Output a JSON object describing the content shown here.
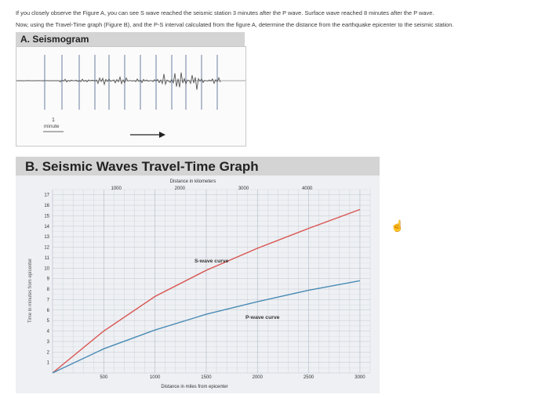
{
  "intro": {
    "line1": "If you closely observe the Figure A, you can see S wave reached the seismic station 3 minutes after the P wave. Surface wave reached 8 minutes after the P wave.",
    "line2": "Now, using the Travel-Time graph (Figure B), and the P-S interval calculated from the figure A, determine the distance from the earthquake epicenter to the seismic station."
  },
  "seismogram": {
    "title": "A. Seismogram",
    "scale_number": "1",
    "scale_label": "minute"
  },
  "graph": {
    "title": "B. Seismic Waves Travel-Time Graph",
    "top_axis_label": "Distance in kilometers",
    "bottom_axis_label": "Distance in miles from epicenter",
    "y_axis_label": "Time in minutes from epicenter",
    "top_ticks": [
      "1000",
      "2000",
      "3000",
      "4000"
    ],
    "bottom_ticks": [
      "500",
      "1000",
      "1500",
      "2000",
      "2500",
      "3000"
    ],
    "y_ticks": [
      "1",
      "2",
      "3",
      "4",
      "5",
      "6",
      "7",
      "8",
      "9",
      "10",
      "11",
      "12",
      "13",
      "14",
      "15",
      "16",
      "17"
    ],
    "s_label": "S-wave curve",
    "p_label": "P-wave curve",
    "colors": {
      "s_curve": "#d9534f",
      "p_curve": "#4a8bb5",
      "grid": "#9aa6b5"
    }
  },
  "chart_data": {
    "type": "line",
    "title": "B. Seismic Waves Travel-Time Graph",
    "xlabel": "Distance in miles from epicenter",
    "ylabel": "Time in minutes from epicenter",
    "xlim": [
      0,
      3100
    ],
    "ylim": [
      0,
      17.5
    ],
    "grid": true,
    "series": [
      {
        "name": "S-wave curve",
        "x": [
          0,
          500,
          1000,
          1500,
          2000,
          2500,
          3000
        ],
        "y": [
          0,
          4,
          7.3,
          9.8,
          11.9,
          13.8,
          15.6
        ]
      },
      {
        "name": "P-wave curve",
        "x": [
          0,
          500,
          1000,
          1500,
          2000,
          2500,
          3000
        ],
        "y": [
          0,
          2.3,
          4.1,
          5.6,
          6.8,
          7.9,
          8.8
        ]
      }
    ]
  },
  "cursor_icon": "hand-pointer-icon"
}
